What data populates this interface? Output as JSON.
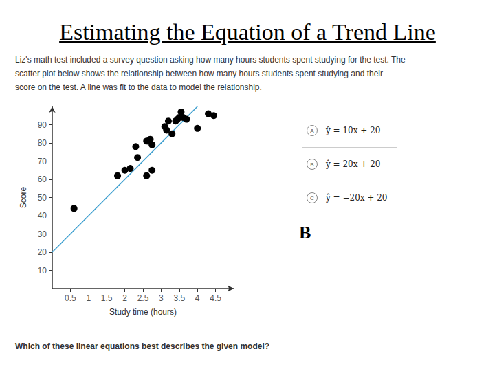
{
  "title": "Estimating the Equation of a Trend Line",
  "problem": [
    "Liz's math test included a survey question asking how many hours students spent studying for the test. The",
    "scatter plot below shows the relationship between how many hours students spent studying and their",
    "score on the test. A line was fit to the data to model the relationship."
  ],
  "options": [
    {
      "letter": "A",
      "text": "ŷ = 10x + 20"
    },
    {
      "letter": "B",
      "text": "ŷ = 20x + 20"
    },
    {
      "letter": "C",
      "text": "ŷ = −20x + 20"
    }
  ],
  "answer": "B",
  "question": "Which of these linear equations best describes the given model?",
  "chart_data": {
    "type": "scatter",
    "x_label": "Study time (hours)",
    "y_label": "Score",
    "xlim": [
      0,
      5
    ],
    "ylim": [
      0,
      100
    ],
    "xticks": [
      0.5,
      1,
      1.5,
      2,
      2.5,
      3,
      3.5,
      4,
      4.5
    ],
    "yticks": [
      10,
      20,
      30,
      40,
      50,
      60,
      70,
      80,
      90
    ],
    "grid": false,
    "series": [
      {
        "type": "scatter",
        "color": "#000000",
        "marker": "circle",
        "x": [
          0.6,
          1.8,
          2.0,
          2.15,
          2.35,
          2.3,
          2.6,
          2.6,
          2.65,
          2.7,
          2.75,
          2.75,
          3.1,
          3.15,
          3.2,
          3.3,
          3.4,
          3.45,
          3.5,
          3.55,
          3.6,
          3.7,
          4.0,
          4.3,
          4.45
        ],
        "values": [
          44,
          62,
          65,
          66,
          72,
          78,
          62,
          81,
          81,
          82,
          79,
          65,
          89,
          87,
          92,
          85,
          92,
          93,
          94,
          97,
          94,
          93,
          88,
          96,
          95
        ]
      },
      {
        "type": "line",
        "color": "#3d9fcf",
        "line_style": "solid",
        "x": [
          0,
          4
        ],
        "values": [
          20,
          100
        ]
      }
    ]
  }
}
